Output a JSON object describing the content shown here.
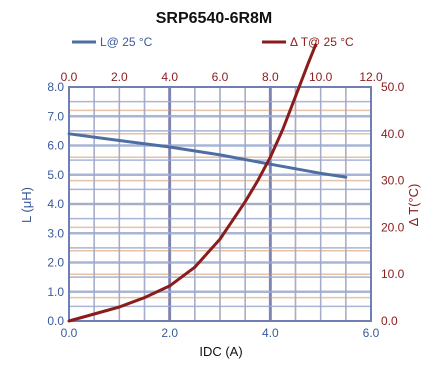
{
  "chart_data": {
    "type": "line",
    "title": "SRP6540-6R8M",
    "xlabel": "IDC (A)",
    "ylabel": "L (μH)",
    "y2label": "Δ T(°C)",
    "xlim": [
      0,
      6
    ],
    "ylim": [
      0,
      8
    ],
    "x2lim": [
      0,
      12
    ],
    "y2lim": [
      0,
      50
    ],
    "x_ticks": [
      "0.0",
      "2.0",
      "4.0",
      "6.0"
    ],
    "y_ticks": [
      "0.0",
      "1.0",
      "2.0",
      "3.0",
      "4.0",
      "5.0",
      "6.0",
      "7.0",
      "8.0"
    ],
    "x2_ticks": [
      "0.0",
      "2.0",
      "4.0",
      "6.0",
      "8.0",
      "10.0",
      "12.0"
    ],
    "y2_ticks": [
      "0.0",
      "10.0",
      "20.0",
      "30.0",
      "40.0",
      "50.0"
    ],
    "grid": true,
    "legend_position": "top",
    "colors": {
      "inductance": "#4e6ea3",
      "temperature": "#8b1c1c",
      "primary_grid": "#9aa8cf",
      "primary_grid_major": "#6f7fb5",
      "secondary_grid": "#e6c2a8",
      "secondary_grid_major": "#b89bb0",
      "primary_axis_text": "#3a5a9a",
      "secondary_axis_text": "#8b1c1c"
    },
    "series": [
      {
        "name": "L@ 25 °C",
        "axis": "primary",
        "x": [
          0.0,
          1.0,
          2.0,
          3.0,
          4.0,
          5.0,
          5.5
        ],
        "y": [
          6.4,
          6.17,
          5.95,
          5.68,
          5.36,
          5.05,
          4.92
        ]
      },
      {
        "name": "Δ T@ 25 °C",
        "axis": "secondary",
        "x": [
          0.0,
          1.0,
          2.0,
          3.0,
          4.0,
          5.0,
          6.0,
          7.0,
          7.5,
          8.0,
          8.5,
          9.0,
          9.5,
          9.8
        ],
        "y": [
          0.0,
          1.5,
          3.0,
          5.0,
          7.5,
          11.5,
          17.5,
          25.5,
          30.0,
          35.0,
          41.0,
          48.0,
          55.0,
          59.0
        ]
      }
    ]
  }
}
